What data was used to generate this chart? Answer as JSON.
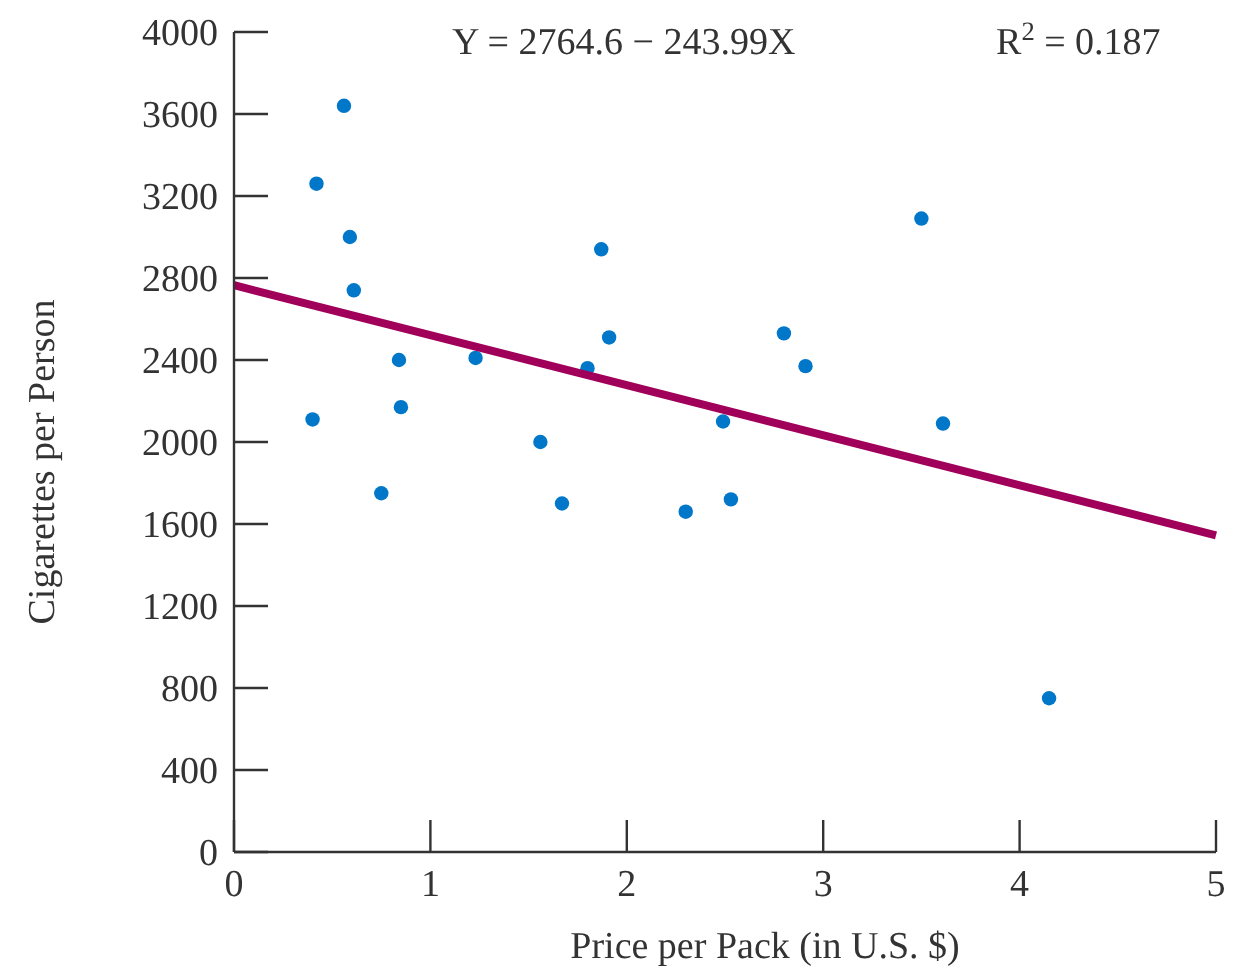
{
  "chart_data": {
    "type": "scatter",
    "xlabel": "Price per Pack (in U.S. $)",
    "ylabel": "Cigarettes per Person",
    "annotations": [
      "Y = 2764.6 − 243.99X",
      "R$^{2}$ = 0.187"
    ],
    "xlim": [
      0,
      5
    ],
    "xticks": [
      0,
      1,
      2,
      3,
      4,
      5
    ],
    "ylim": [
      0,
      4000
    ],
    "yticks": [
      0,
      400,
      800,
      1200,
      1600,
      2000,
      2400,
      2800,
      3200,
      3600,
      4000
    ],
    "grid": false,
    "series": [
      {
        "marker": "circle",
        "color": "#0077c8",
        "x": [
          0.56,
          0.42,
          0.59,
          0.61,
          0.4,
          0.84,
          0.85,
          0.75,
          1.23,
          1.56,
          1.67,
          1.8,
          1.87,
          1.91,
          2.3,
          2.49,
          2.53,
          2.8,
          2.91,
          3.5,
          3.61,
          4.15
        ],
        "values": [
          3640,
          3260,
          3000,
          2740,
          2110,
          2400,
          2170,
          1750,
          2410,
          2000,
          1700,
          2360,
          2940,
          2510,
          1660,
          2100,
          1720,
          2530,
          2370,
          3090,
          2090,
          750
        ]
      },
      {
        "type": "line",
        "color": "#a0005a",
        "line_style": "solid",
        "x": [
          0,
          5
        ],
        "values": [
          2765,
          1545
        ]
      }
    ]
  }
}
